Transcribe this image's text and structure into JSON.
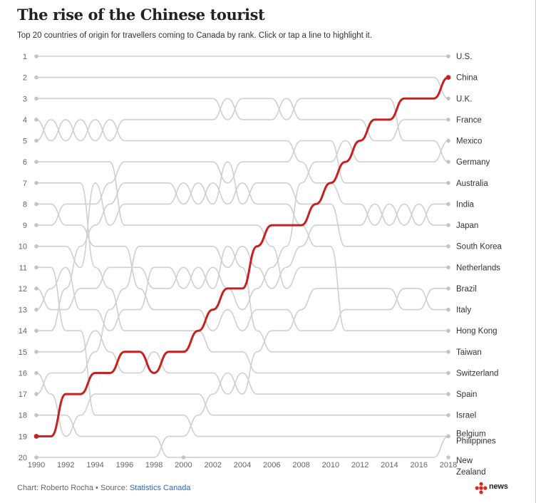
{
  "header": {
    "title": "The rise of the Chinese tourist",
    "subtitle": "Top 20 countries of origin for travellers coming to Canada by rank. Click or tap a line to highlight it."
  },
  "footer": {
    "credit": "Chart: Roberto Rocha",
    "separator": " • Source: ",
    "source_link": "Statistics Canada",
    "logo_text": "news"
  },
  "colors": {
    "highlight": "#c8201f",
    "line": "#cfcfcf",
    "dot": "#c4c4c4",
    "label": "#333333",
    "axis": "#666666",
    "logo_red": "#e1261c"
  },
  "chart_data": {
    "type": "line",
    "x": [
      1990,
      1991,
      1992,
      1993,
      1994,
      1995,
      1996,
      1997,
      1998,
      1999,
      2000,
      2001,
      2002,
      2003,
      2004,
      2005,
      2006,
      2007,
      2008,
      2009,
      2010,
      2011,
      2012,
      2013,
      2014,
      2015,
      2016,
      2017,
      2018
    ],
    "x_ticks": [
      1990,
      1992,
      1994,
      1996,
      1998,
      2000,
      2002,
      2004,
      2006,
      2008,
      2010,
      2012,
      2014,
      2016,
      2018
    ],
    "y_ticks": [
      1,
      2,
      3,
      4,
      5,
      6,
      7,
      8,
      9,
      10,
      11,
      12,
      13,
      14,
      15,
      16,
      17,
      18,
      19,
      20
    ],
    "ylim": [
      1,
      20
    ],
    "y_inverted": true,
    "grid": false,
    "highlighted_series": "China",
    "series": [
      {
        "name": "U.S.",
        "values": [
          1,
          1,
          1,
          1,
          1,
          1,
          1,
          1,
          1,
          1,
          1,
          1,
          1,
          1,
          1,
          1,
          1,
          1,
          1,
          1,
          1,
          1,
          1,
          1,
          1,
          1,
          1,
          1,
          1
        ]
      },
      {
        "name": "China",
        "values": [
          19,
          19,
          17,
          17,
          16,
          16,
          15,
          15,
          16,
          15,
          15,
          14,
          13,
          12,
          12,
          10,
          9,
          9,
          9,
          8,
          7,
          6,
          5,
          4,
          4,
          3,
          3,
          3,
          2
        ]
      },
      {
        "name": "U.K.",
        "values": [
          2,
          2,
          2,
          2,
          2,
          2,
          2,
          2,
          2,
          2,
          2,
          2,
          2,
          2,
          2,
          2,
          2,
          2,
          2,
          2,
          2,
          2,
          2,
          2,
          2,
          2,
          2,
          2,
          3
        ]
      },
      {
        "name": "France",
        "values": [
          4,
          5,
          4,
          5,
          4,
          5,
          4,
          4,
          4,
          4,
          4,
          4,
          4,
          3,
          4,
          4,
          4,
          3,
          4,
          4,
          4,
          4,
          4,
          5,
          5,
          4,
          4,
          4,
          4
        ]
      },
      {
        "name": "Mexico",
        "values": [
          12,
          13,
          13,
          12,
          12,
          11,
          11,
          11,
          12,
          12,
          11,
          12,
          11,
          12,
          13,
          12,
          11,
          10,
          7,
          6,
          6,
          5,
          6,
          6,
          6,
          6,
          6,
          6,
          5
        ]
      },
      {
        "name": "Germany",
        "values": [
          3,
          3,
          3,
          3,
          3,
          3,
          3,
          3,
          3,
          3,
          3,
          3,
          3,
          4,
          3,
          3,
          3,
          4,
          3,
          3,
          3,
          3,
          3,
          3,
          3,
          5,
          5,
          5,
          6
        ]
      },
      {
        "name": "Australia",
        "values": [
          9,
          9,
          8,
          8,
          8,
          7,
          6,
          6,
          6,
          6,
          6,
          6,
          6,
          7,
          6,
          6,
          6,
          6,
          5,
          5,
          5,
          7,
          7,
          7,
          7,
          7,
          7,
          7,
          7
        ]
      },
      {
        "name": "India",
        "values": [
          17,
          16,
          16,
          16,
          15,
          13,
          12,
          10,
          10,
          10,
          10,
          10,
          10,
          11,
          10,
          11,
          12,
          11,
          10,
          9,
          9,
          9,
          9,
          8,
          9,
          8,
          9,
          8,
          8
        ]
      },
      {
        "name": "Japan",
        "values": [
          5,
          4,
          5,
          4,
          5,
          4,
          5,
          5,
          5,
          5,
          5,
          5,
          5,
          5,
          5,
          5,
          5,
          5,
          6,
          7,
          7,
          8,
          8,
          9,
          8,
          9,
          8,
          9,
          9
        ]
      },
      {
        "name": "South Korea",
        "values": [
          14,
          14,
          12,
          10,
          9,
          8,
          7,
          7,
          7,
          7,
          8,
          7,
          8,
          6,
          8,
          7,
          7,
          7,
          8,
          8,
          8,
          10,
          10,
          10,
          10,
          10,
          10,
          10,
          10
        ]
      },
      {
        "name": "Netherlands",
        "values": [
          6,
          6,
          6,
          6,
          6,
          6,
          9,
          9,
          9,
          9,
          9,
          9,
          9,
          9,
          9,
          9,
          10,
          12,
          11,
          11,
          11,
          11,
          11,
          11,
          11,
          11,
          11,
          11,
          11
        ]
      },
      {
        "name": "Brazil",
        "values": [
          20,
          20,
          20,
          20,
          20,
          20,
          20,
          20,
          20,
          19,
          19,
          18,
          17,
          16,
          17,
          15,
          14,
          14,
          13,
          12,
          12,
          12,
          12,
          12,
          12,
          13,
          13,
          12,
          12
        ]
      },
      {
        "name": "Italy",
        "values": [
          8,
          8,
          9,
          9,
          10,
          10,
          10,
          12,
          13,
          13,
          13,
          13,
          14,
          13,
          14,
          13,
          13,
          13,
          14,
          14,
          14,
          13,
          13,
          13,
          13,
          12,
          12,
          13,
          13
        ]
      },
      {
        "name": "Hong Kong",
        "values": [
          10,
          10,
          10,
          11,
          7,
          9,
          8,
          8,
          8,
          8,
          7,
          8,
          7,
          8,
          7,
          8,
          8,
          8,
          9,
          10,
          10,
          14,
          14,
          14,
          14,
          14,
          14,
          14,
          14
        ]
      },
      {
        "name": "Taiwan",
        "values": [
          13,
          12,
          11,
          13,
          13,
          14,
          13,
          13,
          11,
          11,
          12,
          11,
          12,
          10,
          11,
          14,
          15,
          15,
          15,
          15,
          15,
          15,
          15,
          15,
          15,
          15,
          15,
          15,
          15
        ]
      },
      {
        "name": "Switzerland",
        "values": [
          7,
          7,
          7,
          7,
          11,
          12,
          14,
          14,
          14,
          14,
          14,
          14,
          15,
          15,
          15,
          16,
          16,
          16,
          16,
          16,
          16,
          16,
          16,
          16,
          16,
          16,
          16,
          16,
          16
        ]
      },
      {
        "name": "Spain",
        "values": [
          15,
          15,
          15,
          15,
          14,
          15,
          16,
          16,
          15,
          16,
          16,
          16,
          16,
          17,
          16,
          17,
          17,
          17,
          17,
          17,
          17,
          17,
          17,
          17,
          17,
          17,
          17,
          17,
          17
        ]
      },
      {
        "name": "Israel",
        "values": [
          16,
          17,
          19,
          18,
          17,
          17,
          17,
          17,
          17,
          17,
          17,
          17,
          18,
          18,
          18,
          18,
          18,
          18,
          18,
          18,
          18,
          18,
          18,
          18,
          18,
          18,
          18,
          18,
          18
        ]
      },
      {
        "name": "Belgium",
        "values": [
          11,
          11,
          14,
          14,
          18,
          18,
          18,
          18,
          18,
          18,
          18,
          19,
          19,
          19,
          19,
          19,
          19,
          19,
          19,
          19,
          19,
          19,
          19,
          19,
          19,
          19,
          19,
          19,
          19
        ]
      },
      {
        "name": "Philippines",
        "values": [
          18,
          18,
          18,
          19,
          19,
          19,
          19,
          19,
          19,
          20,
          20,
          20,
          20,
          20,
          20,
          20,
          20,
          20,
          20,
          20,
          20,
          20,
          20,
          20,
          20,
          20,
          20,
          20,
          19
        ]
      },
      {
        "name": "New Zealand",
        "values": [
          null,
          null,
          null,
          null,
          null,
          null,
          null,
          null,
          null,
          null,
          20,
          20,
          null,
          null,
          null,
          null,
          null,
          null,
          null,
          null,
          null,
          null,
          null,
          null,
          null,
          null,
          null,
          null,
          20
        ]
      }
    ],
    "end_labels": [
      {
        "rank": 1,
        "label": "U.S."
      },
      {
        "rank": 2,
        "label": "China"
      },
      {
        "rank": 3,
        "label": "U.K."
      },
      {
        "rank": 4,
        "label": "France"
      },
      {
        "rank": 5,
        "label": "Mexico"
      },
      {
        "rank": 6,
        "label": "Germany"
      },
      {
        "rank": 7,
        "label": "Australia"
      },
      {
        "rank": 8,
        "label": "India"
      },
      {
        "rank": 9,
        "label": "Japan"
      },
      {
        "rank": 10,
        "label": "South Korea"
      },
      {
        "rank": 11,
        "label": "Netherlands"
      },
      {
        "rank": 12,
        "label": "Brazil"
      },
      {
        "rank": 13,
        "label": "Italy"
      },
      {
        "rank": 14,
        "label": "Hong Kong"
      },
      {
        "rank": 15,
        "label": "Taiwan"
      },
      {
        "rank": 16,
        "label": "Switzerland"
      },
      {
        "rank": 17,
        "label": "Spain"
      },
      {
        "rank": 18,
        "label": "Israel"
      },
      {
        "rank": 19,
        "label": "Belgium"
      },
      {
        "rank": 19,
        "label": "Philippines"
      },
      {
        "rank": 20,
        "label": "New Zealand"
      }
    ]
  }
}
